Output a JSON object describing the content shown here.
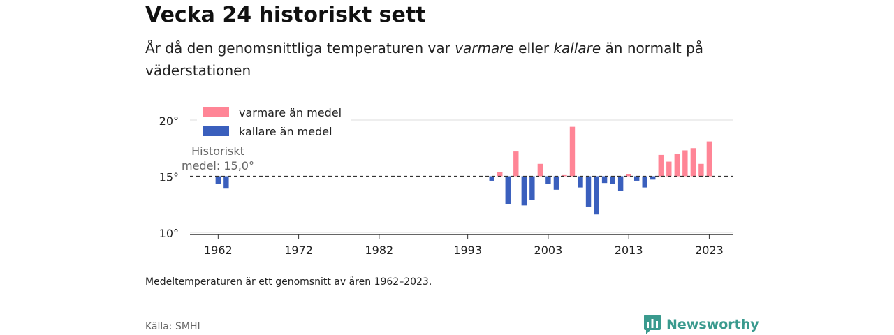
{
  "header": {
    "title": "Vecka 24 historiskt sett",
    "subtitle_part1": "År då den genomsnittliga temperaturen var ",
    "subtitle_em1": "varmare",
    "subtitle_part2": " eller ",
    "subtitle_em2": "kallare",
    "subtitle_part3": " än normalt på väderstationen"
  },
  "footer": {
    "note": "Medeltemperaturen är ett genomsnitt av åren 1962–2023.",
    "source": "Källa: SMHI",
    "brand": "Newsworthy"
  },
  "colors": {
    "warm": "#ff8596",
    "cold": "#3a5fbd",
    "brand": "#3a9a8e"
  },
  "chart_data": {
    "type": "bar",
    "title": "Vecka 24 historiskt sett",
    "baseline": 15.0,
    "baseline_label_line1": "Historiskt",
    "baseline_label_line2": "medel: 15,0°",
    "ylim": [
      10,
      20
    ],
    "yticks": [
      10,
      15,
      20
    ],
    "ytick_labels": [
      "10°",
      "15°",
      "20°"
    ],
    "xlim": [
      1958.5,
      2026
    ],
    "xticks": [
      1962,
      1972,
      1982,
      1993,
      2003,
      2013,
      2023
    ],
    "xtick_labels": [
      "1962",
      "1972",
      "1982",
      "1993",
      "2003",
      "2013",
      "2023"
    ],
    "legend": [
      {
        "name": "varmare än medel",
        "color": "#ff8596"
      },
      {
        "name": "kallare än medel",
        "color": "#3a5fbd"
      }
    ],
    "legend_position": "top-left",
    "grid": true,
    "x": [
      1962,
      1963,
      1996,
      1997,
      1998,
      1999,
      2000,
      2001,
      2002,
      2003,
      2004,
      2005,
      2006,
      2007,
      2008,
      2009,
      2010,
      2011,
      2012,
      2013,
      2014,
      2015,
      2016,
      2017,
      2018,
      2019,
      2020,
      2021,
      2022,
      2023
    ],
    "values": [
      14.3,
      13.9,
      14.6,
      15.4,
      12.5,
      17.2,
      12.4,
      12.9,
      16.1,
      14.3,
      13.8,
      15.1,
      19.4,
      14.0,
      12.3,
      11.6,
      14.4,
      14.3,
      13.7,
      15.2,
      14.6,
      14.0,
      14.7,
      16.9,
      16.3,
      17.0,
      17.3,
      17.5,
      16.1,
      18.1
    ]
  }
}
